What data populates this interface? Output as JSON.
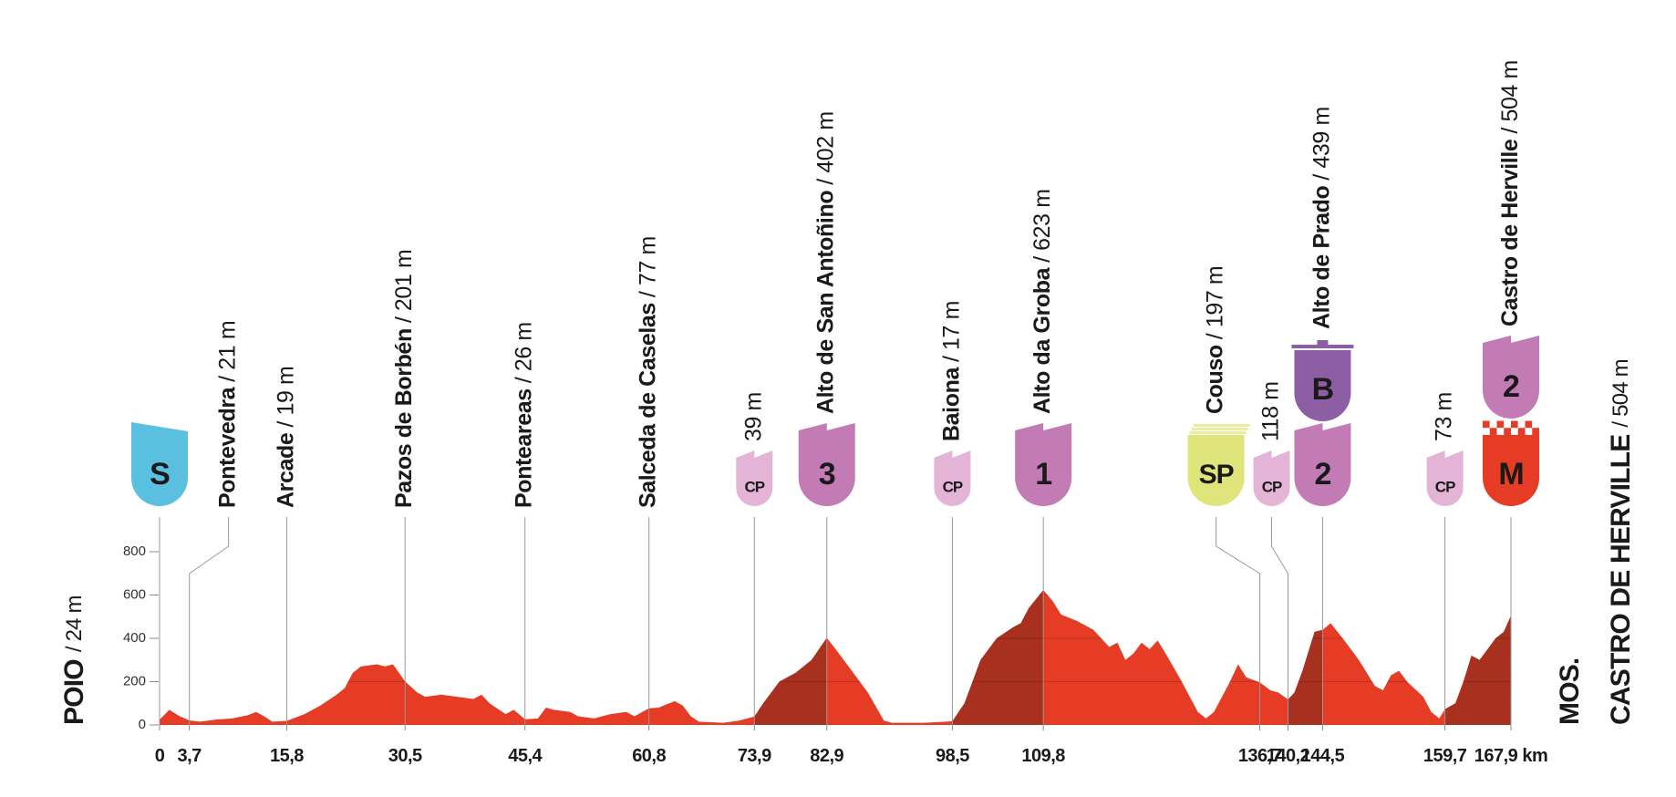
{
  "chart_data": {
    "type": "area",
    "color": "#e63b24",
    "climb_color": "#a8301f",
    "xlim": [
      0,
      167.9
    ],
    "ylim": [
      0,
      800
    ],
    "yticks": [
      0,
      200,
      400,
      600,
      800
    ],
    "xticks": [
      0,
      {
        "value": 3.7,
        "label": "3,7"
      },
      {
        "value": 15.8,
        "label": "15,8"
      },
      {
        "value": 30.5,
        "label": "30,5"
      },
      {
        "value": 45.4,
        "label": "45,4"
      },
      {
        "value": 60.8,
        "label": "60,8"
      },
      {
        "value": 73.9,
        "label": "73,9"
      },
      {
        "value": 82.9,
        "label": "82,9"
      },
      {
        "value": 98.5,
        "label": "98,5"
      },
      {
        "value": 109.8,
        "label": "109,8"
      },
      {
        "value": 136.7,
        "label": "136,7"
      },
      {
        "value": 140.2,
        "label": "140,2"
      },
      {
        "value": 144.5,
        "label": "144,5"
      },
      {
        "value": 159.7,
        "label": "159,7"
      },
      {
        "value": 167.9,
        "label": "167,9 km"
      }
    ],
    "x": [
      0,
      1.2,
      2.5,
      3.7,
      5,
      7,
      9,
      11,
      12,
      13,
      14,
      15.8,
      18,
      20,
      22,
      23,
      24,
      25,
      27,
      28,
      29,
      30.5,
      32,
      33,
      35,
      37,
      39,
      40,
      41,
      43,
      44,
      45.4,
      47,
      48,
      49,
      51,
      52,
      54,
      56,
      58,
      59,
      60.8,
      62,
      63,
      64,
      65,
      66,
      67,
      70,
      72,
      73.9,
      75,
      77,
      79,
      81,
      82.9,
      84,
      86,
      88,
      90,
      91,
      95,
      98.5,
      100,
      102,
      104,
      106,
      107,
      108,
      109.8,
      111,
      112,
      114,
      116,
      118,
      119,
      120,
      121,
      122,
      123,
      124,
      125,
      127,
      129,
      130,
      131,
      133,
      134,
      135,
      136.7,
      138,
      139,
      140.2,
      141,
      142,
      143.5,
      144.5,
      145.5,
      147,
      149,
      151,
      152,
      153,
      154,
      155,
      157,
      158,
      159,
      159.7,
      161,
      162,
      163,
      164,
      165,
      166,
      167,
      167.9
    ],
    "values": [
      24,
      70,
      40,
      21,
      15,
      25,
      30,
      45,
      60,
      40,
      15,
      19,
      50,
      90,
      140,
      170,
      240,
      270,
      280,
      270,
      280,
      201,
      150,
      130,
      140,
      130,
      120,
      140,
      100,
      50,
      70,
      26,
      30,
      80,
      70,
      60,
      40,
      30,
      50,
      60,
      40,
      77,
      80,
      95,
      110,
      90,
      40,
      15,
      10,
      20,
      39,
      100,
      200,
      240,
      300,
      402,
      350,
      250,
      150,
      20,
      10,
      10,
      17,
      100,
      300,
      400,
      450,
      470,
      540,
      623,
      570,
      510,
      480,
      440,
      360,
      380,
      300,
      330,
      380,
      350,
      390,
      330,
      200,
      60,
      30,
      60,
      200,
      280,
      220,
      197,
      160,
      150,
      118,
      150,
      250,
      430,
      439,
      470,
      400,
      300,
      180,
      160,
      230,
      250,
      200,
      130,
      60,
      30,
      73,
      100,
      200,
      320,
      300,
      350,
      400,
      430,
      504
    ],
    "start": {
      "name": "POIO",
      "alt": "/ 24 m",
      "km": 0,
      "icons": [
        {
          "label": "S",
          "color": "#5bbfe0",
          "ink": "#ffffff",
          "shape": "flag"
        }
      ]
    },
    "finish": {
      "lines": [
        "MOS.",
        "CASTRO DE HERVILLE"
      ],
      "alt": "/ 504 m"
    },
    "waypoints": [
      {
        "name": "Pontevedra",
        "alt": "/ 21 m",
        "km": 3.7
      },
      {
        "name": "Arcade",
        "alt": "/ 19 m",
        "km": 15.8
      },
      {
        "name": "Pazos de Borbén",
        "alt": "/ 201 m",
        "km": 30.5
      },
      {
        "name": "Ponteareas",
        "alt": "/ 26 m",
        "km": 45.4
      },
      {
        "name": "Salceda de Caselas",
        "alt": "/ 77 m",
        "km": 60.8
      },
      {
        "alt": "39 m",
        "km": 73.9,
        "icons": [
          {
            "label": "CP",
            "color": "#e4b4d6",
            "ink": "#2a2a2a",
            "shape": "teeth",
            "small": true
          }
        ]
      },
      {
        "name": "Alto de San Antoñino",
        "alt": "/ 402 m",
        "km": 82.9,
        "climb": true,
        "icons": [
          {
            "label": "3",
            "color": "#c27bb4",
            "ink": "#ffffff",
            "shape": "teeth"
          }
        ]
      },
      {
        "name": "Baiona",
        "alt": "/ 17 m",
        "km": 98.5,
        "icons": [
          {
            "label": "CP",
            "color": "#e4b4d6",
            "ink": "#2a2a2a",
            "shape": "teeth",
            "small": true
          }
        ]
      },
      {
        "name": "Alto da Groba",
        "alt": "/ 623 m",
        "km": 109.8,
        "climb": true,
        "icons": [
          {
            "label": "1",
            "color": "#c27bb4",
            "ink": "#ffffff",
            "shape": "teeth"
          }
        ]
      },
      {
        "name": "Couso",
        "alt": "/ 197 m",
        "km": 136.7,
        "icons": [
          {
            "label": "SP",
            "color": "#dfe57a",
            "ink": "#2a2a2a",
            "shape": "stack"
          }
        ]
      },
      {
        "alt": "118 m",
        "km": 140.2,
        "icons": [
          {
            "label": "CP",
            "color": "#e4b4d6",
            "ink": "#2a2a2a",
            "shape": "teeth",
            "small": true
          }
        ]
      },
      {
        "name": "Alto de Prado",
        "alt": "/ 439 m",
        "km": 144.5,
        "climb": true,
        "icons": [
          {
            "label": "2",
            "color": "#c27bb4",
            "ink": "#ffffff",
            "shape": "teeth"
          },
          {
            "label": "B",
            "color": "#8e5ea4",
            "ink": "#ffffff",
            "shape": "tab"
          }
        ]
      },
      {
        "alt": "73 m",
        "km": 159.7,
        "icons": [
          {
            "label": "CP",
            "color": "#e4b4d6",
            "ink": "#2a2a2a",
            "shape": "teeth",
            "small": true
          }
        ]
      },
      {
        "name": "Castro de Herville",
        "alt": "/ 504 m",
        "km": 167.9,
        "climb": true,
        "icons": [
          {
            "label": "M",
            "color": "#e63b24",
            "ink": "#ffffff",
            "shape": "checker"
          },
          {
            "label": "2",
            "color": "#c27bb4",
            "ink": "#ffffff",
            "shape": "teeth"
          }
        ]
      }
    ]
  }
}
